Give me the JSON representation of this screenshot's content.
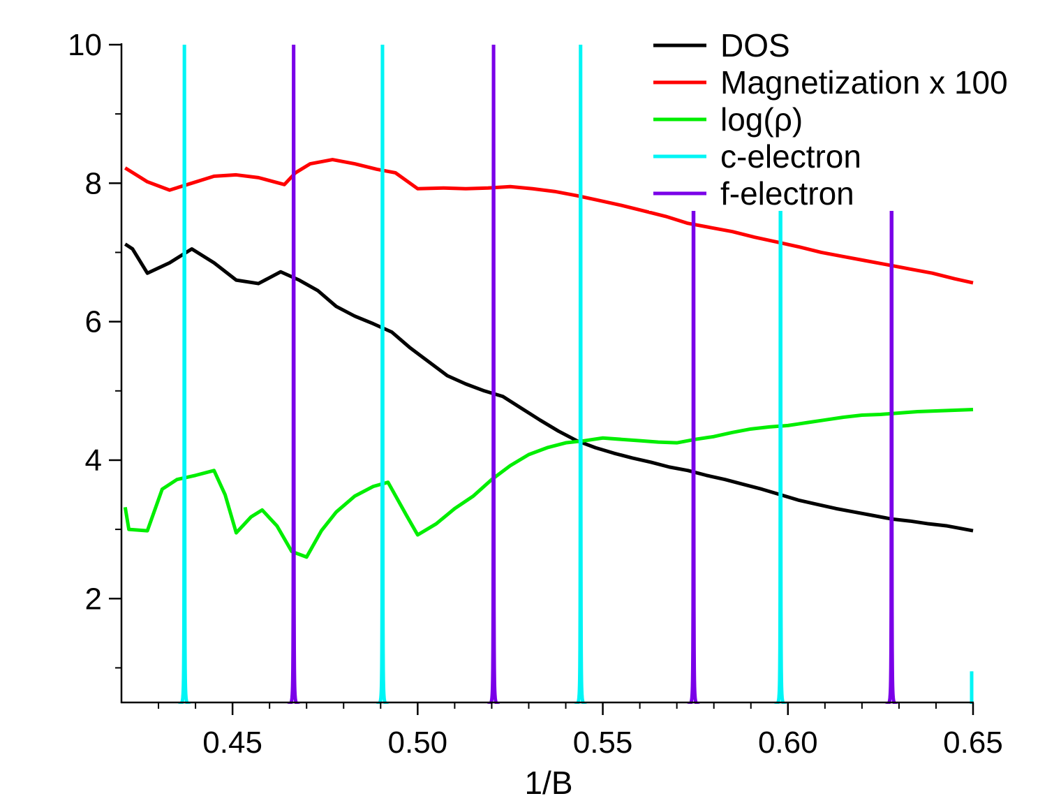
{
  "chart_data": {
    "type": "line",
    "title": "",
    "xlabel": "1/B",
    "ylabel": "",
    "xlim": [
      0.42,
      0.65
    ],
    "ylim": [
      0.5,
      10
    ],
    "xticks": [
      0.45,
      0.5,
      0.55,
      0.6,
      0.65
    ],
    "xtick_labels": [
      "0.45",
      "0.50",
      "0.55",
      "0.60",
      "0.65"
    ],
    "yticks": [
      2,
      4,
      6,
      8,
      10
    ],
    "ytick_labels": [
      "2",
      "4",
      "6",
      "8",
      "10"
    ],
    "legend_position": "top-right",
    "series": [
      {
        "name": "DOS",
        "color": "#000000",
        "x": [
          0.421,
          0.423,
          0.427,
          0.433,
          0.439,
          0.445,
          0.451,
          0.457,
          0.463,
          0.468,
          0.473,
          0.478,
          0.483,
          0.488,
          0.493,
          0.498,
          0.503,
          0.508,
          0.513,
          0.518,
          0.523,
          0.528,
          0.533,
          0.538,
          0.543,
          0.548,
          0.553,
          0.558,
          0.563,
          0.568,
          0.573,
          0.578,
          0.583,
          0.588,
          0.593,
          0.598,
          0.603,
          0.608,
          0.613,
          0.618,
          0.623,
          0.628,
          0.633,
          0.638,
          0.643,
          0.65
        ],
        "values": [
          7.12,
          7.05,
          6.7,
          6.85,
          7.05,
          6.85,
          6.6,
          6.55,
          6.72,
          6.6,
          6.45,
          6.22,
          6.08,
          5.97,
          5.85,
          5.62,
          5.42,
          5.22,
          5.1,
          5.0,
          4.92,
          4.75,
          4.58,
          4.42,
          4.28,
          4.18,
          4.1,
          4.03,
          3.97,
          3.9,
          3.85,
          3.78,
          3.72,
          3.65,
          3.58,
          3.5,
          3.42,
          3.36,
          3.3,
          3.25,
          3.2,
          3.15,
          3.12,
          3.08,
          3.05,
          2.98
        ]
      },
      {
        "name": "Magnetization x 100",
        "color": "#ff0000",
        "x": [
          0.421,
          0.427,
          0.433,
          0.439,
          0.445,
          0.451,
          0.457,
          0.464,
          0.467,
          0.471,
          0.477,
          0.483,
          0.489,
          0.494,
          0.5,
          0.507,
          0.513,
          0.519,
          0.525,
          0.531,
          0.537,
          0.543,
          0.549,
          0.555,
          0.561,
          0.567,
          0.573,
          0.579,
          0.585,
          0.591,
          0.597,
          0.603,
          0.609,
          0.615,
          0.621,
          0.627,
          0.633,
          0.639,
          0.645,
          0.65
        ],
        "values": [
          8.22,
          8.02,
          7.9,
          8.0,
          8.1,
          8.12,
          8.08,
          7.98,
          8.15,
          8.28,
          8.34,
          8.28,
          8.2,
          8.15,
          7.92,
          7.93,
          7.92,
          7.93,
          7.95,
          7.92,
          7.88,
          7.82,
          7.75,
          7.68,
          7.6,
          7.52,
          7.42,
          7.36,
          7.3,
          7.22,
          7.15,
          7.08,
          7.0,
          6.94,
          6.88,
          6.82,
          6.76,
          6.7,
          6.62,
          6.56
        ]
      },
      {
        "name": "log(ρ)",
        "color": "#00ee00",
        "x": [
          0.421,
          0.422,
          0.427,
          0.431,
          0.435,
          0.44,
          0.445,
          0.448,
          0.451,
          0.455,
          0.458,
          0.462,
          0.466,
          0.47,
          0.474,
          0.478,
          0.483,
          0.488,
          0.492,
          0.497,
          0.5,
          0.505,
          0.51,
          0.515,
          0.52,
          0.525,
          0.53,
          0.535,
          0.54,
          0.545,
          0.55,
          0.555,
          0.56,
          0.565,
          0.57,
          0.575,
          0.58,
          0.585,
          0.59,
          0.595,
          0.6,
          0.605,
          0.61,
          0.615,
          0.62,
          0.625,
          0.63,
          0.635,
          0.64,
          0.645,
          0.65
        ],
        "values": [
          3.32,
          3.0,
          2.98,
          3.58,
          3.72,
          3.78,
          3.85,
          3.5,
          2.95,
          3.18,
          3.28,
          3.05,
          2.68,
          2.6,
          2.98,
          3.25,
          3.48,
          3.62,
          3.68,
          3.2,
          2.92,
          3.08,
          3.3,
          3.48,
          3.72,
          3.92,
          4.08,
          4.18,
          4.25,
          4.28,
          4.32,
          4.3,
          4.28,
          4.26,
          4.25,
          4.3,
          4.34,
          4.4,
          4.45,
          4.48,
          4.5,
          4.54,
          4.58,
          4.62,
          4.65,
          4.66,
          4.68,
          4.7,
          4.71,
          4.72,
          4.73
        ]
      },
      {
        "name": "c-electron",
        "color": "#00f5f5",
        "peaks": [
          0.437,
          0.4905,
          0.544,
          0.598
        ],
        "partial_rise_at": 0.65,
        "partial_rise_value": 0.95
      },
      {
        "name": "f-electron",
        "color": "#7a00e8",
        "peaks": [
          0.4665,
          0.5205,
          0.5745,
          0.628
        ]
      }
    ]
  }
}
